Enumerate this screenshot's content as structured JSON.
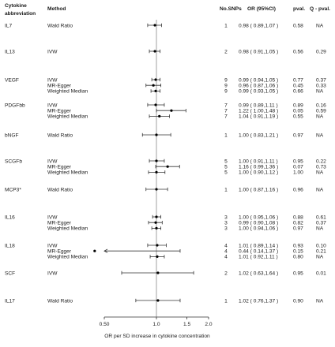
{
  "chart_data": {
    "type": "forest",
    "headers": {
      "cytokine": [
        "Cytokine",
        "abbreviation"
      ],
      "method": "Method",
      "nsnps": "No.SNPs",
      "or": "OR (95%CI)",
      "pval": "pval.",
      "qpval": "Q - pval."
    },
    "xscale": "log",
    "xlim": [
      0.5,
      2.0
    ],
    "xticks": [
      0.5,
      1.0,
      1.5,
      2.0
    ],
    "xtick_labels": [
      "0.50",
      "1.0",
      "1.5",
      "2.0"
    ],
    "reference_line": 1.0,
    "xlabel": "OR per SD increase in cytokine concentration",
    "groups": [
      {
        "name": "IL7",
        "rows": [
          {
            "method": "Wald Ratio",
            "n": "1",
            "or_text": "0.98 ( 0.89,1.07 )",
            "pval": "0.58",
            "q": "NA",
            "or": 0.98,
            "lo": 0.89,
            "hi": 1.07
          }
        ]
      },
      {
        "name": "IL13",
        "rows": [
          {
            "method": "IVW",
            "n": "2",
            "or_text": "0.98 ( 0.91,1.05 )",
            "pval": "0.56",
            "q": "0.29",
            "or": 0.98,
            "lo": 0.91,
            "hi": 1.05
          }
        ]
      },
      {
        "name": "VEGF",
        "rows": [
          {
            "method": "IVW",
            "n": "9",
            "or_text": "0.99 ( 0.94,1.05 )",
            "pval": "0.77",
            "q": "0.37",
            "or": 0.99,
            "lo": 0.94,
            "hi": 1.05
          },
          {
            "method": "MR-Egger",
            "n": "9",
            "or_text": "0.96 ( 0.87,1.06 )",
            "pval": "0.45",
            "q": "0.33",
            "or": 0.96,
            "lo": 0.87,
            "hi": 1.06
          },
          {
            "method": "Weighted Median",
            "n": "9",
            "or_text": "0.99 ( 0.93,1.05 )",
            "pval": "0.66",
            "q": "NA",
            "or": 0.99,
            "lo": 0.93,
            "hi": 1.05
          }
        ]
      },
      {
        "name": "PDGFbb",
        "rows": [
          {
            "method": "IVW",
            "n": "7",
            "or_text": "0.99 ( 0.89,1.11 )",
            "pval": "0.89",
            "q": "0.16",
            "or": 0.99,
            "lo": 0.89,
            "hi": 1.11
          },
          {
            "method": "MR-Egger",
            "n": "7",
            "or_text": "1.22 ( 1.00,1.48 )",
            "pval": "0.05",
            "q": "0.59",
            "or": 1.22,
            "lo": 1.0,
            "hi": 1.48
          },
          {
            "method": "Weighted Median",
            "n": "7",
            "or_text": "1.04 ( 0.91,1.19 )",
            "pval": "0.55",
            "q": "NA",
            "or": 1.04,
            "lo": 0.91,
            "hi": 1.19
          }
        ]
      },
      {
        "name": "bNGF",
        "rows": [
          {
            "method": "Wald Ratio",
            "n": "1",
            "or_text": "1.00 ( 0.83,1.21 )",
            "pval": "0.97",
            "q": "NA",
            "or": 1.0,
            "lo": 0.83,
            "hi": 1.21
          }
        ]
      },
      {
        "name": "SCGFb",
        "rows": [
          {
            "method": "IVW",
            "n": "5",
            "or_text": "1.00 ( 0.91,1.11 )",
            "pval": "0.95",
            "q": "0.22",
            "or": 1.0,
            "lo": 0.91,
            "hi": 1.11
          },
          {
            "method": "MR-Egger",
            "n": "5",
            "or_text": "1.16 ( 0.99,1.36 )",
            "pval": "0.07",
            "q": "0.73",
            "or": 1.16,
            "lo": 0.99,
            "hi": 1.36
          },
          {
            "method": "Weighted Median",
            "n": "5",
            "or_text": "1.00 ( 0.90,1.12 )",
            "pval": "1.00",
            "q": "NA",
            "or": 1.0,
            "lo": 0.9,
            "hi": 1.12
          }
        ]
      },
      {
        "name": "MCP3*",
        "rows": [
          {
            "method": "Wald Ratio",
            "n": "1",
            "or_text": "1.00 ( 0.87,1.16 )",
            "pval": "0.96",
            "q": "NA",
            "or": 1.0,
            "lo": 0.87,
            "hi": 1.16
          }
        ]
      },
      {
        "name": "IL16",
        "rows": [
          {
            "method": "IVW",
            "n": "3",
            "or_text": "1.00 ( 0.95,1.06 )",
            "pval": "0.88",
            "q": "0.61",
            "or": 1.0,
            "lo": 0.95,
            "hi": 1.06
          },
          {
            "method": "MR-Egger",
            "n": "3",
            "or_text": "0.99 ( 0.90,1.08 )",
            "pval": "0.82",
            "q": "0.37",
            "or": 0.99,
            "lo": 0.9,
            "hi": 1.08
          },
          {
            "method": "Weighted Median",
            "n": "3",
            "or_text": "1.00 ( 0.94,1.06 )",
            "pval": "0.97",
            "q": "NA",
            "or": 1.0,
            "lo": 0.94,
            "hi": 1.06
          }
        ]
      },
      {
        "name": "IL18",
        "rows": [
          {
            "method": "IVW",
            "n": "4",
            "or_text": "1.01 ( 0.89,1.14 )",
            "pval": "0.93",
            "q": "0.10",
            "or": 1.01,
            "lo": 0.89,
            "hi": 1.14
          },
          {
            "method": "MR-Egger",
            "n": "4",
            "or_text": "0.44 ( 0.14,1.37 )",
            "pval": "0.15",
            "q": "0.21",
            "or": 0.44,
            "lo": 0.14,
            "hi": 1.37
          },
          {
            "method": "Weighted Median",
            "n": "4",
            "or_text": "1.01 ( 0.92,1.11 )",
            "pval": "0.80",
            "q": "NA",
            "or": 1.01,
            "lo": 0.92,
            "hi": 1.11
          }
        ]
      },
      {
        "name": "SCF",
        "rows": [
          {
            "method": "IVW",
            "n": "2",
            "or_text": "1.02 ( 0.63,1.64 )",
            "pval": "0.95",
            "q": "0.01",
            "or": 1.02,
            "lo": 0.63,
            "hi": 1.64
          }
        ]
      },
      {
        "name": "IL17",
        "rows": [
          {
            "method": "Wald Ratio",
            "n": "1",
            "or_text": "1.02 ( 0.76,1.37 )",
            "pval": "0.90",
            "q": "NA",
            "or": 1.02,
            "lo": 0.76,
            "hi": 1.37
          }
        ]
      }
    ]
  }
}
